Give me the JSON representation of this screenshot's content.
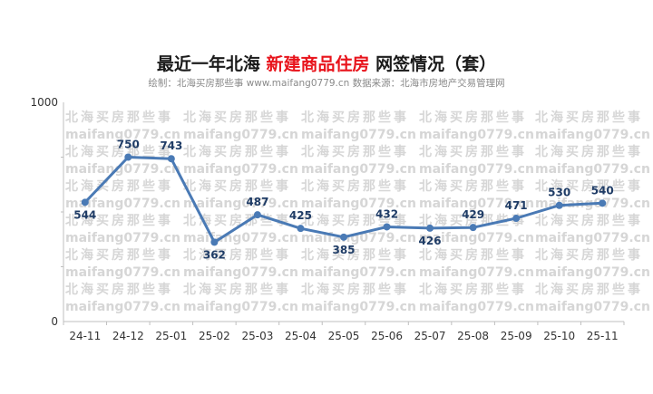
{
  "title": {
    "part1": "最近一年北海 ",
    "part2": "新建商品住房",
    "part3": " 网签情况（套）"
  },
  "subtitle": "绘制：北海买房那些事 www.maifang0779.cn 数据来源：北海市房地产交易管理网",
  "watermark": {
    "line1": "北海买房那些事",
    "line2": "maifang0779.cn"
  },
  "colors": {
    "line": "#4a7ab5",
    "title_accent": "#e8131b",
    "label": "#1f3c66"
  },
  "chart_data": {
    "type": "line",
    "categories": [
      "24-11",
      "24-12",
      "25-01",
      "25-02",
      "25-03",
      "25-04",
      "25-05",
      "25-06",
      "25-07",
      "25-08",
      "25-09",
      "25-10",
      "25-11"
    ],
    "series": [
      {
        "values": [
          544,
          750,
          743,
          362,
          487,
          425,
          385,
          432,
          426,
          429,
          471,
          530,
          540
        ]
      }
    ],
    "y_ticks": [
      "0",
      "1000"
    ],
    "ylim": [
      0,
      1000
    ],
    "grid": false,
    "data_labels": true
  }
}
